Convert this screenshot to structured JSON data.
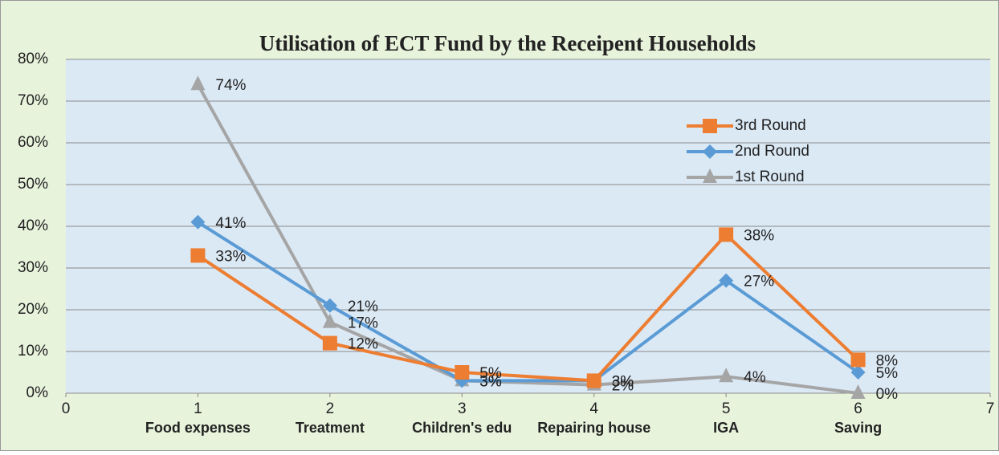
{
  "chart_data": {
    "type": "line",
    "title": "Utilisation of  ECT  Fund by the Receipent  Households",
    "x": [
      1,
      2,
      3,
      4,
      5,
      6
    ],
    "category_labels": [
      "Food expenses",
      "Treatment",
      "Children's edu",
      "Repairing house",
      "IGA",
      "Saving"
    ],
    "series": [
      {
        "name": "3rd Round",
        "color": "#ed7d31",
        "marker": "square",
        "values": [
          33,
          12,
          5,
          3,
          38,
          8
        ],
        "value_labels": [
          "33%",
          "12%",
          "5%",
          "3%",
          "38%",
          "8%"
        ]
      },
      {
        "name": "2nd Round",
        "color": "#5b9bd5",
        "marker": "diamond",
        "values": [
          41,
          21,
          3,
          3,
          27,
          5
        ],
        "value_labels": [
          "41%",
          "21%",
          "3%",
          "3%",
          "27%",
          "5%"
        ]
      },
      {
        "name": "1st Round",
        "color": "#a5a5a5",
        "marker": "triangle",
        "values": [
          74,
          17,
          3,
          2,
          4,
          0
        ],
        "value_labels": [
          "74%",
          "17%",
          "3%",
          "2%",
          "4%",
          "0%"
        ]
      }
    ],
    "xlim": [
      0,
      7
    ],
    "xticks": [
      0,
      1,
      2,
      3,
      4,
      5,
      6,
      7
    ],
    "ylim": [
      0,
      80
    ],
    "yticks": [
      {
        "value": 0,
        "label": "0%"
      },
      {
        "value": 10,
        "label": "10%"
      },
      {
        "value": 20,
        "label": "20%"
      },
      {
        "value": 30,
        "label": "30%"
      },
      {
        "value": 40,
        "label": "40%"
      },
      {
        "value": 50,
        "label": "50%"
      },
      {
        "value": 60,
        "label": "60%"
      },
      {
        "value": 70,
        "label": "70%"
      },
      {
        "value": 80,
        "label": "80%"
      }
    ],
    "grid": true,
    "legend": "upper right"
  }
}
